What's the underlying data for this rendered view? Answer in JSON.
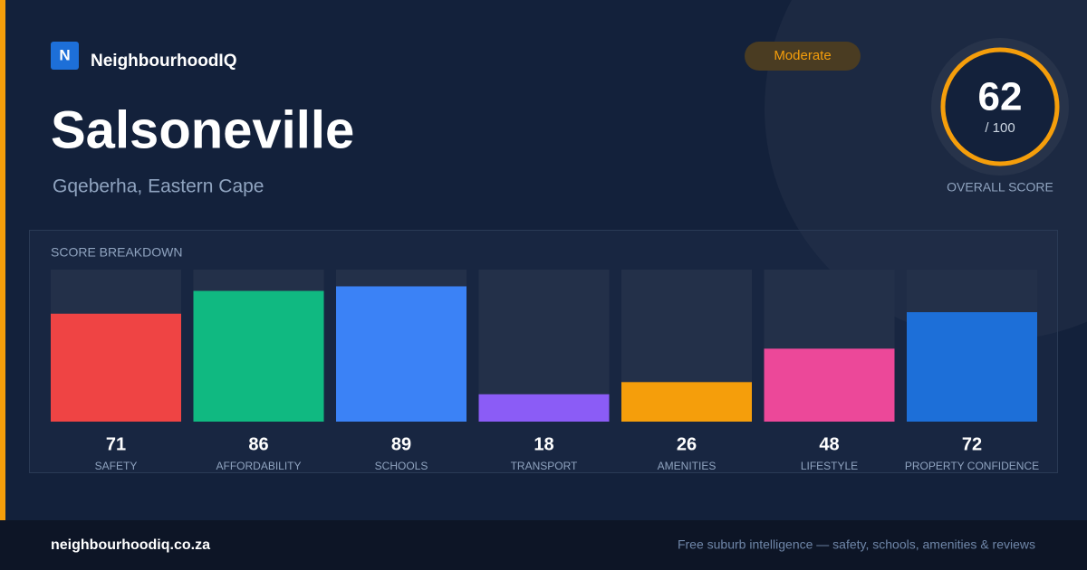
{
  "brand": {
    "logo": "N",
    "name": "NeighbourhoodIQ"
  },
  "badge": "Moderate",
  "title": "Salsoneville",
  "subtitle": "Gqeberha, Eastern Cape",
  "overall": {
    "score": 62,
    "max_label": "/ 100",
    "label": "OVERALL SCORE"
  },
  "chart_data": {
    "type": "bar",
    "title": "SCORE BREAKDOWN",
    "categories": [
      "SAFETY",
      "AFFORDABILITY",
      "SCHOOLS",
      "TRANSPORT",
      "AMENITIES",
      "LIFESTYLE",
      "PROPERTY CONFIDENCE"
    ],
    "values": [
      71,
      86,
      89,
      18,
      26,
      48,
      72
    ],
    "colors": [
      "#ef4444",
      "#10b981",
      "#3b82f6",
      "#8b5cf6",
      "#f59e0b",
      "#ec4899",
      "#1d6fd8"
    ],
    "ylim": [
      0,
      100
    ]
  },
  "footer": {
    "url": "neighbourhoodiq.co.za",
    "tagline": "Free suburb intelligence — safety, schools, amenities & reviews"
  }
}
